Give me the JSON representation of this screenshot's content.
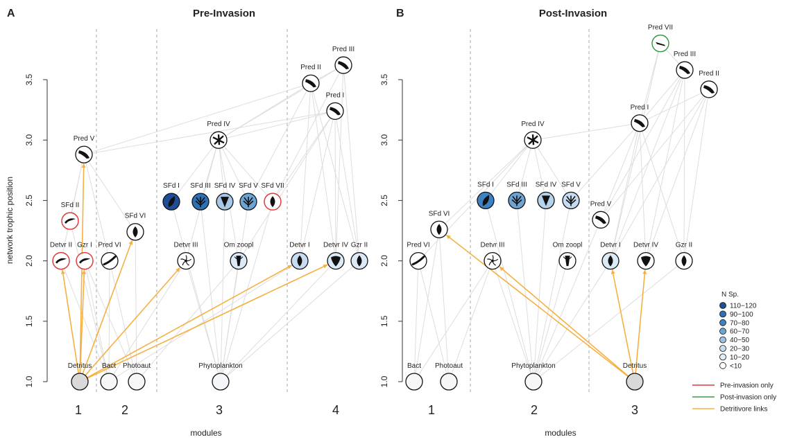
{
  "panels": [
    {
      "letter": "A",
      "title": "Pre-Invasion",
      "modules": [
        "1",
        "2",
        "3",
        "4"
      ],
      "nodes": [
        {
          "id": "pV",
          "label": "Pred V",
          "y": 2.88,
          "fill": "#ffffff",
          "ring": "black",
          "icon": "fish-silhouette-icon"
        },
        {
          "id": "pIV",
          "label": "Pred IV",
          "y": 3.0,
          "fill": "#ffffff",
          "ring": "black",
          "icon": "starfish-silhouette-icon"
        },
        {
          "id": "pII",
          "label": "Pred II",
          "y": 3.47,
          "fill": "#ffffff",
          "ring": "black",
          "icon": "fish-silhouette-icon"
        },
        {
          "id": "pIII",
          "label": "Pred III",
          "y": 3.62,
          "fill": "#ffffff",
          "ring": "black",
          "icon": "fish-silhouette-icon"
        },
        {
          "id": "pI",
          "label": "Pred I",
          "y": 3.24,
          "fill": "#ffffff",
          "ring": "black",
          "icon": "fish-silhouette-icon"
        },
        {
          "id": "sfII",
          "label": "SFd II",
          "y": 2.33,
          "fill": "#ffffff",
          "ring": "red",
          "icon": "shrimp-silhouette-icon"
        },
        {
          "id": "sfVI",
          "label": "SFd VI",
          "y": 2.24,
          "fill": "#ffffff",
          "ring": "black",
          "icon": "seed-silhouette-icon"
        },
        {
          "id": "sfI",
          "label": "SFd I",
          "y": 2.49,
          "fill": "#1f4e96",
          "ring": "black",
          "icon": "leaf-silhouette-icon"
        },
        {
          "id": "sfIII",
          "label": "SFd III",
          "y": 2.49,
          "fill": "#2e6fb6",
          "ring": "black",
          "icon": "plume-silhouette-icon"
        },
        {
          "id": "sfIV",
          "label": "SFd IV",
          "y": 2.49,
          "fill": "#a8c8e8",
          "ring": "black",
          "icon": "cone-silhouette-icon"
        },
        {
          "id": "sfV",
          "label": "SFd V",
          "y": 2.49,
          "fill": "#6ea4d4",
          "ring": "black",
          "icon": "plume-silhouette-icon"
        },
        {
          "id": "sfVII",
          "label": "SFd VII",
          "y": 2.49,
          "fill": "#ffffff",
          "ring": "red",
          "icon": "seed-silhouette-icon"
        },
        {
          "id": "dII",
          "label": "Detvr II",
          "y": 2.0,
          "fill": "#ffffff",
          "ring": "red",
          "icon": "shrimp-silhouette-icon"
        },
        {
          "id": "gI",
          "label": "Gzr I",
          "y": 2.0,
          "fill": "#ffffff",
          "ring": "red",
          "icon": "shrimp-silhouette-icon"
        },
        {
          "id": "pVI",
          "label": "Pred VI",
          "y": 2.0,
          "fill": "#ffffff",
          "ring": "black",
          "icon": "worm-silhouette-icon"
        },
        {
          "id": "dIII",
          "label": "Detvr III",
          "y": 2.0,
          "fill": "#ffffff",
          "ring": "black",
          "icon": "brittle-star-icon"
        },
        {
          "id": "om",
          "label": "Om zoopl",
          "y": 2.0,
          "fill": "#dce9f6",
          "ring": "black",
          "icon": "copepod-silhouette-icon"
        },
        {
          "id": "dI",
          "label": "Detvr I",
          "y": 2.0,
          "fill": "#c7dcf0",
          "ring": "black",
          "icon": "seed-silhouette-icon"
        },
        {
          "id": "dIV",
          "label": "Detvr IV",
          "y": 2.0,
          "fill": "#dce9f6",
          "ring": "black",
          "icon": "blob-silhouette-icon"
        },
        {
          "id": "gII",
          "label": "Gzr II",
          "y": 2.0,
          "fill": "#dce9f6",
          "ring": "black",
          "icon": "seed-silhouette-icon"
        },
        {
          "id": "det",
          "label": "Detritus",
          "y": 1.0,
          "fill": "#d9d9d9",
          "ring": "black",
          "icon": ""
        },
        {
          "id": "bact",
          "label": "Bact",
          "y": 1.0,
          "fill": "#f7f7f7",
          "ring": "black",
          "icon": ""
        },
        {
          "id": "pho",
          "label": "Photoaut",
          "y": 1.0,
          "fill": "#f7f7f7",
          "ring": "black",
          "icon": ""
        },
        {
          "id": "phy",
          "label": "Phytoplankton",
          "y": 1.0,
          "fill": "#f4f6fa",
          "ring": "black",
          "icon": ""
        }
      ],
      "links": [
        [
          "pVI",
          "pV"
        ],
        [
          "sfII",
          "pV"
        ],
        [
          "sfVI",
          "pV"
        ],
        [
          "dII",
          "pV"
        ],
        [
          "sfI",
          "pIV"
        ],
        [
          "sfIII",
          "pIV"
        ],
        [
          "sfIV",
          "pIV"
        ],
        [
          "sfV",
          "pIV"
        ],
        [
          "sfVII",
          "pIV"
        ],
        [
          "om",
          "pIV"
        ],
        [
          "dIII",
          "pIV"
        ],
        [
          "pV",
          "pII"
        ],
        [
          "pIV",
          "pII"
        ],
        [
          "sfV",
          "pII"
        ],
        [
          "dI",
          "pII"
        ],
        [
          "dIV",
          "pII"
        ],
        [
          "gII",
          "pII"
        ],
        [
          "pIV",
          "pIII"
        ],
        [
          "pII",
          "pIII"
        ],
        [
          "sfVII",
          "pIII"
        ],
        [
          "dIV",
          "pIII"
        ],
        [
          "gII",
          "pIII"
        ],
        [
          "pIV",
          "pI"
        ],
        [
          "dI",
          "pI"
        ],
        [
          "dIV",
          "pI"
        ],
        [
          "gII",
          "pI"
        ],
        [
          "sfVII",
          "pI"
        ],
        [
          "om",
          "pI"
        ],
        [
          "pV",
          "pI"
        ],
        [
          "phy",
          "sfI"
        ],
        [
          "phy",
          "sfIII"
        ],
        [
          "phy",
          "sfIV"
        ],
        [
          "phy",
          "sfV"
        ],
        [
          "phy",
          "sfVII"
        ],
        [
          "phy",
          "om"
        ],
        [
          "phy",
          "dIII"
        ],
        [
          "bact",
          "sfII"
        ],
        [
          "bact",
          "dII"
        ],
        [
          "bact",
          "gI"
        ],
        [
          "bact",
          "pVI"
        ],
        [
          "pho",
          "gI"
        ],
        [
          "pho",
          "sfVI"
        ],
        [
          "pho",
          "pVI"
        ],
        [
          "bact",
          "dIII"
        ],
        [
          "pho",
          "om"
        ],
        [
          "phy",
          "dIV"
        ],
        [
          "phy",
          "gII"
        ],
        [
          "bact",
          "dI"
        ]
      ],
      "detritivore_links": [
        [
          "det",
          "dII"
        ],
        [
          "det",
          "gI"
        ],
        [
          "det",
          "pV"
        ],
        [
          "det",
          "sfVI"
        ],
        [
          "det",
          "dIII"
        ],
        [
          "det",
          "dI"
        ],
        [
          "det",
          "dIV"
        ]
      ]
    },
    {
      "letter": "B",
      "title": "Post-Invasion",
      "modules": [
        "1",
        "2",
        "3"
      ],
      "nodes": [
        {
          "id": "pVII",
          "label": "Pred VII",
          "y": 3.8,
          "fill": "#ffffff",
          "ring": "green",
          "icon": "small-fish-icon"
        },
        {
          "id": "pIII",
          "label": "Pred III",
          "y": 3.58,
          "fill": "#ffffff",
          "ring": "black",
          "icon": "fish-silhouette-icon"
        },
        {
          "id": "pII",
          "label": "Pred II",
          "y": 3.42,
          "fill": "#ffffff",
          "ring": "black",
          "icon": "fish-silhouette-icon"
        },
        {
          "id": "pI",
          "label": "Pred I",
          "y": 3.14,
          "fill": "#ffffff",
          "ring": "black",
          "icon": "fish-silhouette-icon"
        },
        {
          "id": "pIV",
          "label": "Pred IV",
          "y": 3.0,
          "fill": "#ffffff",
          "ring": "black",
          "icon": "starfish-silhouette-icon"
        },
        {
          "id": "sfI",
          "label": "SFd I",
          "y": 2.5,
          "fill": "#3c82c4",
          "ring": "black",
          "icon": "leaf-silhouette-icon"
        },
        {
          "id": "sfIII",
          "label": "SFd III",
          "y": 2.5,
          "fill": "#6ea4d4",
          "ring": "black",
          "icon": "plume-silhouette-icon"
        },
        {
          "id": "sfIV",
          "label": "SFd IV",
          "y": 2.5,
          "fill": "#b7d2ec",
          "ring": "black",
          "icon": "cone-silhouette-icon"
        },
        {
          "id": "sfV",
          "label": "SFd V",
          "y": 2.5,
          "fill": "#c7dcf0",
          "ring": "black",
          "icon": "plume-silhouette-icon"
        },
        {
          "id": "pV",
          "label": "Pred V",
          "y": 2.34,
          "fill": "#ffffff",
          "ring": "black",
          "icon": "fish-silhouette-icon"
        },
        {
          "id": "sfVI",
          "label": "SFd VI",
          "y": 2.26,
          "fill": "#ffffff",
          "ring": "black",
          "icon": "seed-silhouette-icon"
        },
        {
          "id": "pVI",
          "label": "Pred VI",
          "y": 2.0,
          "fill": "#ffffff",
          "ring": "black",
          "icon": "worm-silhouette-icon"
        },
        {
          "id": "dIII",
          "label": "Detvr III",
          "y": 2.0,
          "fill": "#ffffff",
          "ring": "black",
          "icon": "brittle-star-icon"
        },
        {
          "id": "om",
          "label": "Om zoopl",
          "y": 2.0,
          "fill": "#ffffff",
          "ring": "black",
          "icon": "copepod-silhouette-icon"
        },
        {
          "id": "dI",
          "label": "Detvr I",
          "y": 2.0,
          "fill": "#dce9f6",
          "ring": "black",
          "icon": "seed-silhouette-icon"
        },
        {
          "id": "dIV",
          "label": "Detvr IV",
          "y": 2.0,
          "fill": "#ffffff",
          "ring": "black",
          "icon": "blob-silhouette-icon"
        },
        {
          "id": "gII",
          "label": "Gzr II",
          "y": 2.0,
          "fill": "#ffffff",
          "ring": "black",
          "icon": "seed-silhouette-icon"
        },
        {
          "id": "bact",
          "label": "Bact",
          "y": 1.0,
          "fill": "#f7f7f7",
          "ring": "black",
          "icon": ""
        },
        {
          "id": "pho",
          "label": "Photoaut",
          "y": 1.0,
          "fill": "#f7f7f7",
          "ring": "black",
          "icon": ""
        },
        {
          "id": "phy",
          "label": "Phytoplankton",
          "y": 1.0,
          "fill": "#f7f7f7",
          "ring": "black",
          "icon": ""
        },
        {
          "id": "det",
          "label": "Detritus",
          "y": 1.0,
          "fill": "#d9d9d9",
          "ring": "black",
          "icon": ""
        }
      ],
      "links": [
        [
          "sfVI",
          "pIV"
        ],
        [
          "pVI",
          "pIV"
        ],
        [
          "sfI",
          "pIV"
        ],
        [
          "sfIII",
          "pIV"
        ],
        [
          "sfIV",
          "pIV"
        ],
        [
          "sfV",
          "pIV"
        ],
        [
          "pIV",
          "pI"
        ],
        [
          "pV",
          "pI"
        ],
        [
          "sfV",
          "pI"
        ],
        [
          "dI",
          "pI"
        ],
        [
          "dIV",
          "pI"
        ],
        [
          "gII",
          "pI"
        ],
        [
          "pI",
          "pIII"
        ],
        [
          "pV",
          "pIII"
        ],
        [
          "dI",
          "pIII"
        ],
        [
          "dIV",
          "pIII"
        ],
        [
          "gII",
          "pIII"
        ],
        [
          "pI",
          "pII"
        ],
        [
          "pV",
          "pII"
        ],
        [
          "dI",
          "pII"
        ],
        [
          "dIV",
          "pII"
        ],
        [
          "gII",
          "pII"
        ],
        [
          "pIII",
          "pVII"
        ],
        [
          "pI",
          "pVII"
        ],
        [
          "dI",
          "pVII"
        ],
        [
          "phy",
          "sfI"
        ],
        [
          "phy",
          "sfIII"
        ],
        [
          "phy",
          "sfIV"
        ],
        [
          "phy",
          "sfV"
        ],
        [
          "phy",
          "om"
        ],
        [
          "phy",
          "dIII"
        ],
        [
          "bact",
          "pVI"
        ],
        [
          "bact",
          "sfVI"
        ],
        [
          "pho",
          "pVI"
        ],
        [
          "pho",
          "dIII"
        ],
        [
          "pho",
          "sfVI"
        ],
        [
          "phy",
          "dI"
        ],
        [
          "phy",
          "pV"
        ],
        [
          "bact",
          "dIII"
        ],
        [
          "phy",
          "gII"
        ]
      ],
      "detritivore_links": [
        [
          "det",
          "sfVI"
        ],
        [
          "det",
          "dIII"
        ],
        [
          "det",
          "dI"
        ],
        [
          "det",
          "dIV"
        ]
      ]
    }
  ],
  "y_axis": {
    "label": "network trophic position",
    "ticks": [
      "1.0",
      "1.5",
      "2.0",
      "2.5",
      "3.0",
      "3.5"
    ],
    "range": [
      1.0,
      3.9
    ]
  },
  "x_axis": {
    "label": "modules"
  },
  "legend": {
    "title": "N Sp.",
    "bins": [
      {
        "label": "110−120",
        "color": "#1f4e96"
      },
      {
        "label": "90−100",
        "color": "#2e6fb6"
      },
      {
        "label": "70−80",
        "color": "#3c82c4"
      },
      {
        "label": "60−70",
        "color": "#6ea4d4"
      },
      {
        "label": "40−50",
        "color": "#9ec1e3"
      },
      {
        "label": "20−30",
        "color": "#c7dcf0"
      },
      {
        "label": "10−20",
        "color": "#e3eef8"
      },
      {
        "label": "<10",
        "color": "#ffffff"
      }
    ],
    "lines": [
      {
        "label": "Pre-invasion only",
        "color": "#e03a3a"
      },
      {
        "label": "Post-invasion only",
        "color": "#3a9a4a"
      },
      {
        "label": "Detritivore links",
        "color": "#f5b041"
      }
    ]
  },
  "colors": {
    "ring_black": "#111111",
    "ring_red": "#e03a3a",
    "ring_green": "#3a9a4a",
    "link": "#dddddd",
    "detritivore": "#f5b041",
    "divider": "#aaaaaa"
  }
}
